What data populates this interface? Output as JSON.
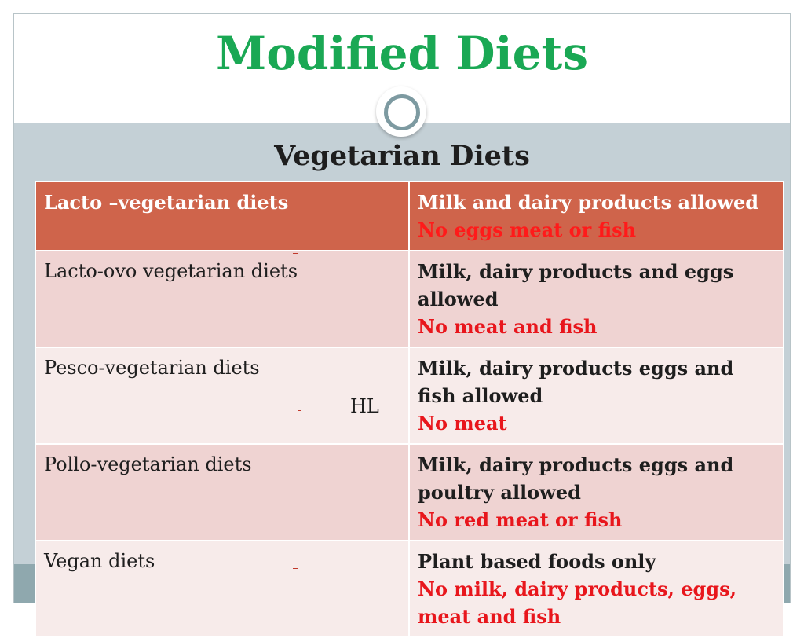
{
  "slide": {
    "title": "Modified Diets",
    "subtitle": "Vegetarian Diets",
    "annotation": "HL"
  },
  "colors": {
    "title_green": "#1aa854",
    "header_row": "#cf644b",
    "row_dark": "#efd3d2",
    "row_light": "#f7ebea",
    "red_text": "#e8161c",
    "body_bg": "#c4d0d6"
  },
  "table": {
    "rows": [
      {
        "diet": "Lacto –vegetarian diets",
        "allowed": "Milk and dairy products allowed",
        "excluded": "No eggs meat or fish"
      },
      {
        "diet": "Lacto-ovo vegetarian diets",
        "allowed": "Milk, dairy products and eggs allowed",
        "excluded": "No meat and fish"
      },
      {
        "diet": "Pesco-vegetarian diets",
        "allowed": "Milk, dairy products eggs and fish allowed",
        "excluded": "No meat"
      },
      {
        "diet": "Pollo-vegetarian diets",
        "allowed": "Milk, dairy products eggs and poultry allowed",
        "excluded": "No red meat or fish"
      },
      {
        "diet": "Vegan diets",
        "allowed": "Plant based foods only",
        "excluded": "No milk, dairy products, eggs, meat and fish"
      }
    ]
  }
}
